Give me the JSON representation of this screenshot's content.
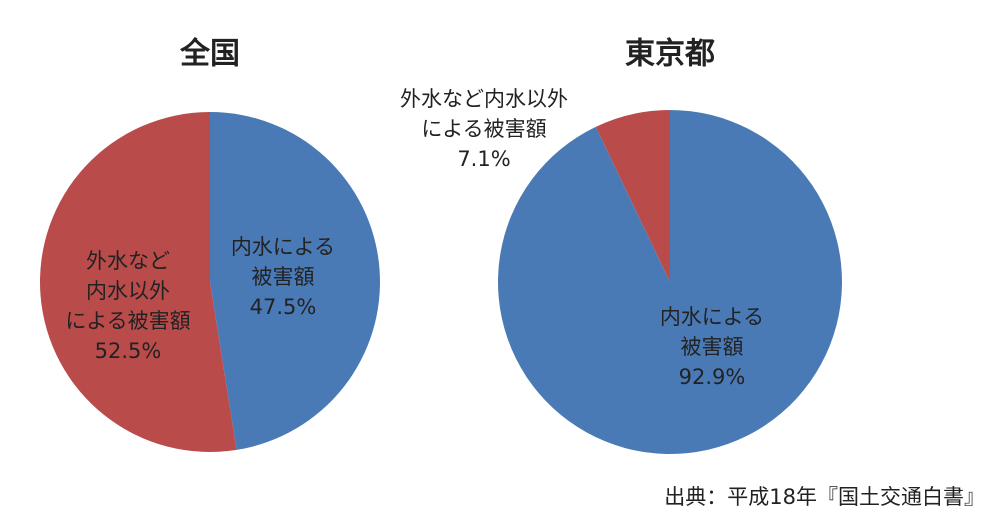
{
  "chart_data": [
    {
      "type": "pie",
      "title": "全国",
      "categories": [
        [
          "内水による",
          "被害額"
        ],
        [
          "外水など",
          "内水以外",
          "による被害額"
        ]
      ],
      "values": [
        47.5,
        52.5
      ],
      "value_labels": [
        "47.5%",
        "52.5%"
      ],
      "colors": [
        "#4a7ab5",
        "#b94b4b"
      ]
    },
    {
      "type": "pie",
      "title": "東京都",
      "categories": [
        [
          "内水による",
          "被害額"
        ],
        [
          "外水など内水以外",
          "による被害額"
        ]
      ],
      "values": [
        92.9,
        7.1
      ],
      "value_labels": [
        "92.9%",
        "7.1%"
      ],
      "colors": [
        "#4a7ab5",
        "#b94b4b"
      ]
    }
  ],
  "source": "出典：平成18年『国土交通白書』"
}
